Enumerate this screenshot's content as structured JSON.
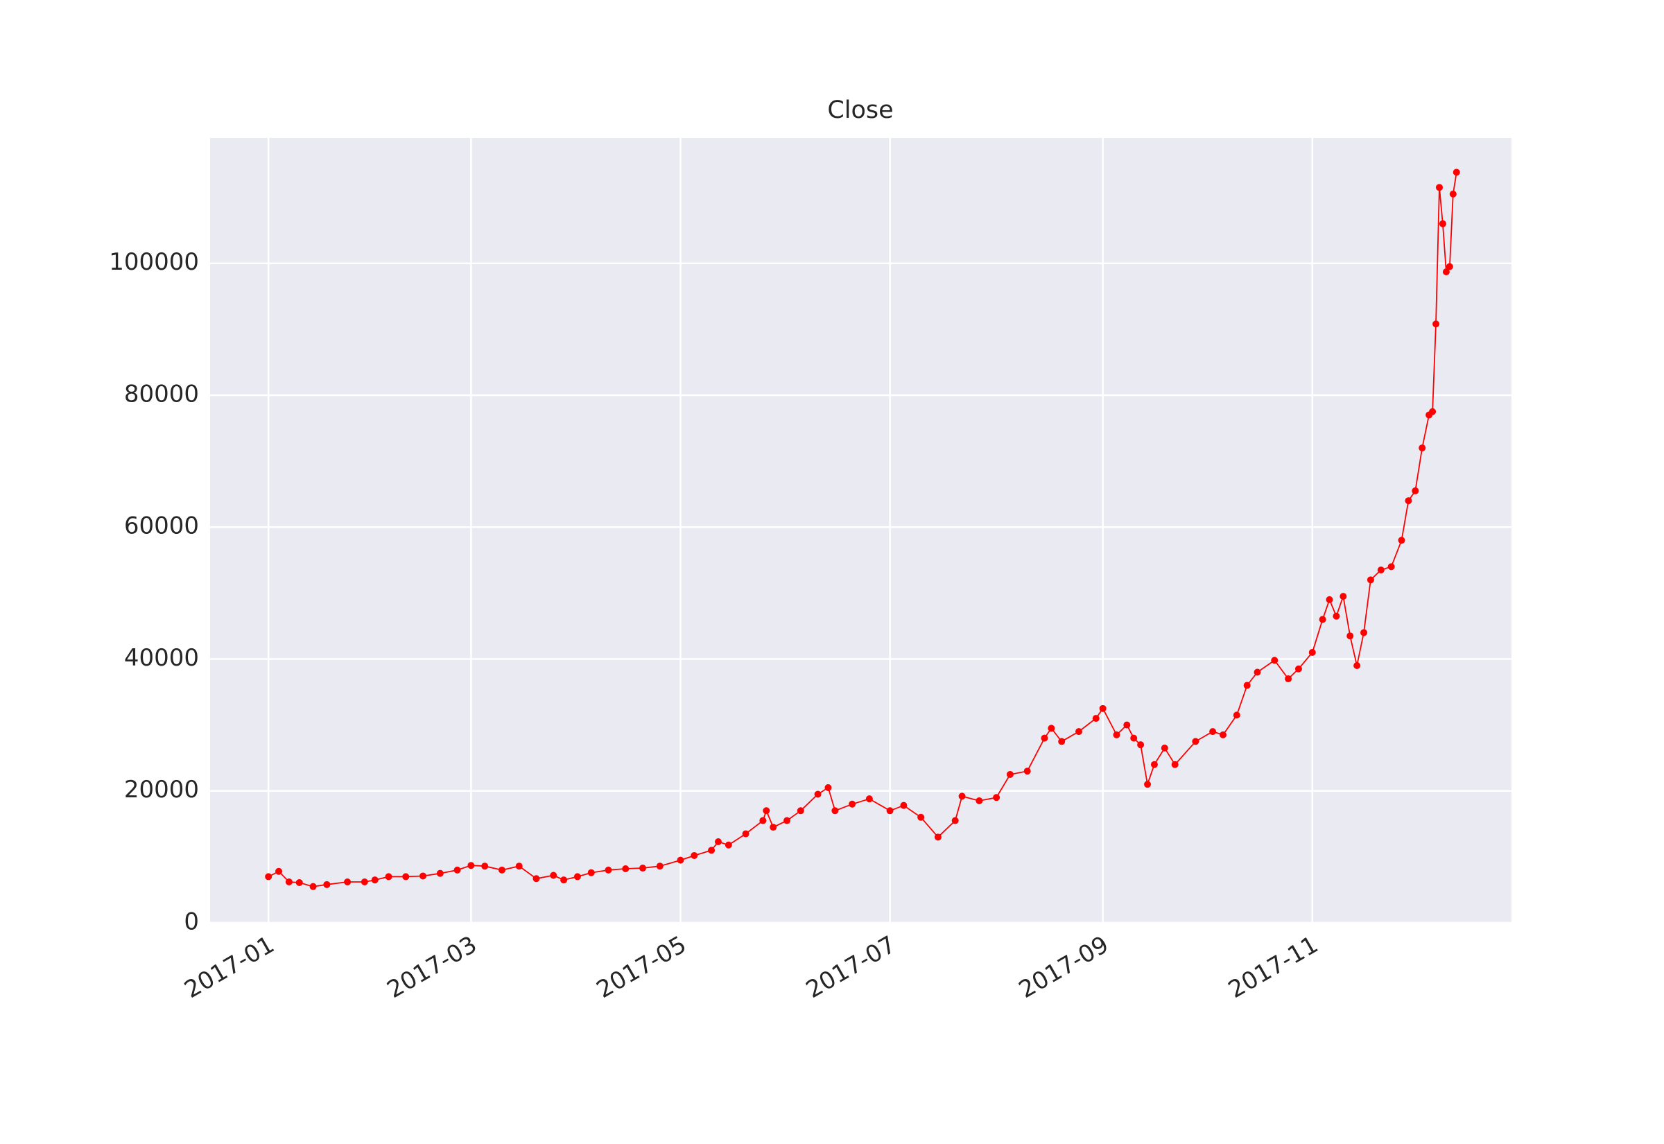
{
  "chart_data": {
    "type": "line",
    "title": "Close",
    "color": "#ff0000",
    "grid": true,
    "background": "#eaeaf2",
    "x": [
      "2017-01-01",
      "2017-01-04",
      "2017-01-07",
      "2017-01-10",
      "2017-01-14",
      "2017-01-18",
      "2017-01-24",
      "2017-01-29",
      "2017-02-01",
      "2017-02-05",
      "2017-02-10",
      "2017-02-15",
      "2017-02-20",
      "2017-02-25",
      "2017-03-01",
      "2017-03-05",
      "2017-03-10",
      "2017-03-15",
      "2017-03-20",
      "2017-03-25",
      "2017-03-28",
      "2017-04-01",
      "2017-04-05",
      "2017-04-10",
      "2017-04-15",
      "2017-04-20",
      "2017-04-25",
      "2017-05-01",
      "2017-05-05",
      "2017-05-10",
      "2017-05-12",
      "2017-05-15",
      "2017-05-20",
      "2017-05-25",
      "2017-05-26",
      "2017-05-28",
      "2017-06-01",
      "2017-06-05",
      "2017-06-10",
      "2017-06-13",
      "2017-06-15",
      "2017-06-20",
      "2017-06-25",
      "2017-07-01",
      "2017-07-05",
      "2017-07-10",
      "2017-07-15",
      "2017-07-20",
      "2017-07-22",
      "2017-07-27",
      "2017-08-01",
      "2017-08-05",
      "2017-08-10",
      "2017-08-15",
      "2017-08-17",
      "2017-08-20",
      "2017-08-25",
      "2017-08-30",
      "2017-09-01",
      "2017-09-05",
      "2017-09-08",
      "2017-09-10",
      "2017-09-12",
      "2017-09-14",
      "2017-09-16",
      "2017-09-19",
      "2017-09-22",
      "2017-09-28",
      "2017-10-03",
      "2017-10-06",
      "2017-10-10",
      "2017-10-13",
      "2017-10-16",
      "2017-10-21",
      "2017-10-25",
      "2017-10-28",
      "2017-11-01",
      "2017-11-04",
      "2017-11-06",
      "2017-11-08",
      "2017-11-10",
      "2017-11-12",
      "2017-11-14",
      "2017-11-16",
      "2017-11-18",
      "2017-11-21",
      "2017-11-24",
      "2017-11-27",
      "2017-11-29",
      "2017-12-01",
      "2017-12-03",
      "2017-12-05",
      "2017-12-06",
      "2017-12-07",
      "2017-12-08",
      "2017-12-09",
      "2017-12-10",
      "2017-12-11",
      "2017-12-12",
      "2017-12-13"
    ],
    "values": [
      7000,
      7800,
      6200,
      6100,
      5500,
      5800,
      6200,
      6200,
      6500,
      7000,
      7000,
      7100,
      7500,
      8000,
      8700,
      8600,
      8000,
      8600,
      6700,
      7200,
      6500,
      7000,
      7600,
      8000,
      8200,
      8300,
      8600,
      9500,
      10200,
      11000,
      12300,
      11800,
      13500,
      15500,
      17000,
      14500,
      15500,
      17000,
      19500,
      20500,
      17000,
      18000,
      18800,
      17000,
      17800,
      16000,
      13000,
      15500,
      19200,
      18500,
      19000,
      22500,
      23000,
      28000,
      29500,
      27500,
      29000,
      31000,
      32500,
      28500,
      30000,
      28000,
      27000,
      21000,
      24000,
      26500,
      24000,
      27500,
      29000,
      28500,
      31500,
      36000,
      38000,
      39800,
      37000,
      38500,
      41000,
      46000,
      49000,
      46500,
      49500,
      43500,
      39000,
      44000,
      52000,
      53500,
      54000,
      58000,
      64000,
      65500,
      72000,
      77000,
      77500,
      90800,
      111500,
      106000,
      98700,
      99500,
      110500,
      113800
    ],
    "xlim": [
      "2016-12-15",
      "2017-12-29"
    ],
    "xticks": [
      "2017-01",
      "2017-03",
      "2017-05",
      "2017-07",
      "2017-09",
      "2017-11"
    ],
    "ylim": [
      0,
      119000
    ],
    "yticks": [
      0,
      20000,
      40000,
      60000,
      80000,
      100000
    ]
  }
}
